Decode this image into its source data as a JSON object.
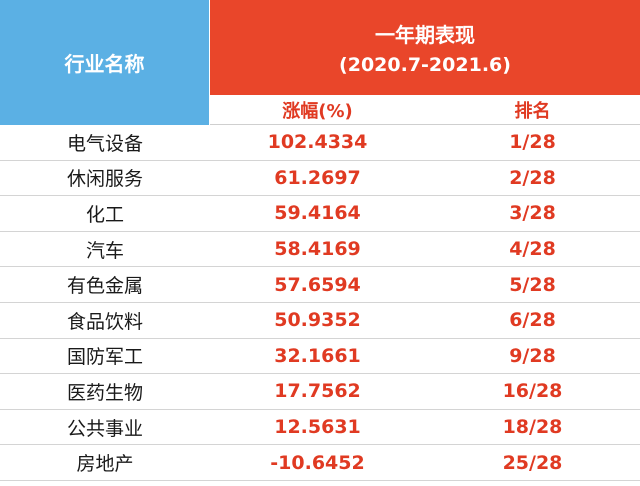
{
  "table": {
    "header": {
      "industry": "行业名称",
      "group_title": "一年期表现",
      "group_period": "(2020.7-2021.6)",
      "change": "涨幅(%)",
      "rank": "排名"
    },
    "rows": [
      [
        "电气设备",
        "102.4334",
        "1/28"
      ],
      [
        "休闲服务",
        "61.2697",
        "2/28"
      ],
      [
        "化工",
        "59.4164",
        "3/28"
      ],
      [
        "汽车",
        "58.4169",
        "4/28"
      ],
      [
        "有色金属",
        "57.6594",
        "5/28"
      ],
      [
        "食品饮料",
        "50.9352",
        "6/28"
      ],
      [
        "国防军工",
        "32.1661",
        "9/28"
      ],
      [
        "医药生物",
        "17.7562",
        "16/28"
      ],
      [
        "公共事业",
        "12.5631",
        "18/28"
      ],
      [
        "房地产",
        "-10.6452",
        "25/28"
      ]
    ]
  }
}
